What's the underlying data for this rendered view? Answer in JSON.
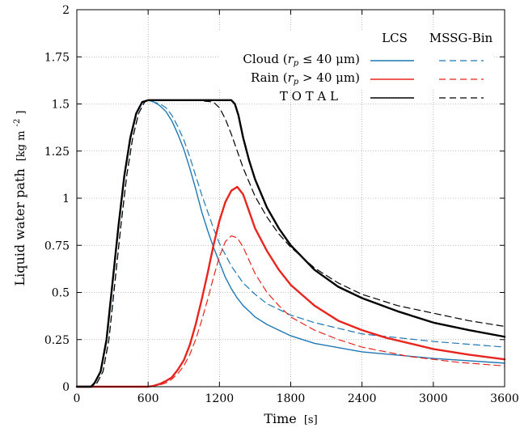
{
  "chart_data": {
    "type": "line",
    "xlabel_main": "Time",
    "xlabel_unit": "[s]",
    "ylabel_main": "Liquid water path",
    "ylabel_unit": "[kg m",
    "ylabel_exp": "-2",
    "ylabel_close": "]",
    "xlim": [
      0,
      3600
    ],
    "ylim": [
      0,
      2
    ],
    "xticks": [
      0,
      600,
      1200,
      1800,
      2400,
      3000,
      3600
    ],
    "yticks": [
      0,
      0.25,
      0.5,
      0.75,
      1,
      1.25,
      1.5,
      1.75,
      2
    ],
    "xtick_labels": [
      "0",
      "600",
      "1200",
      "1800",
      "2400",
      "3000",
      "3600"
    ],
    "ytick_labels": [
      "0",
      "0.25",
      "0.5",
      "0.75",
      "1",
      "1.25",
      "1.5",
      "1.75",
      "2"
    ],
    "grid": true,
    "legend_placement": "top-right",
    "legend": {
      "col_lcs": "LCS",
      "col_mssg": "MSSG-Bin",
      "rows": [
        {
          "pre": "Cloud (",
          "r": "r",
          "sub": "p",
          "post": " ≤ 40 μm)",
          "color": "#1f77b4"
        },
        {
          "pre": "Rain (",
          "r": "r",
          "sub": "p",
          "post": " > 40 μm)",
          "color": "#e8251e"
        },
        {
          "pre": "T O T A L",
          "r": "",
          "sub": "",
          "post": "",
          "color": "#000000"
        }
      ]
    },
    "colors": {
      "cloud": "#1f77b4",
      "rain": "#e8251e",
      "total": "#000000"
    },
    "series": [
      {
        "key": "cloud_lcs",
        "style": "solid",
        "color": "#1f77b4",
        "width": 1.4,
        "x": [
          0,
          120,
          150,
          200,
          250,
          300,
          350,
          400,
          450,
          500,
          550,
          600,
          650,
          700,
          750,
          800,
          850,
          900,
          950,
          1000,
          1050,
          1100,
          1150,
          1200,
          1250,
          1300,
          1350,
          1400,
          1500,
          1600,
          1800,
          2000,
          2400,
          3000,
          3600
        ],
        "y": [
          0,
          0,
          0.02,
          0.08,
          0.25,
          0.55,
          0.85,
          1.12,
          1.32,
          1.45,
          1.51,
          1.52,
          1.51,
          1.49,
          1.46,
          1.41,
          1.34,
          1.26,
          1.16,
          1.05,
          0.93,
          0.83,
          0.74,
          0.66,
          0.58,
          0.52,
          0.47,
          0.43,
          0.37,
          0.33,
          0.27,
          0.23,
          0.185,
          0.15,
          0.125
        ]
      },
      {
        "key": "cloud_mssg",
        "style": "dashed",
        "color": "#1f77b4",
        "width": 1.2,
        "x": [
          0,
          120,
          170,
          220,
          270,
          320,
          370,
          420,
          470,
          520,
          570,
          600,
          650,
          700,
          750,
          800,
          850,
          900,
          950,
          1000,
          1050,
          1100,
          1150,
          1200,
          1250,
          1300,
          1400,
          1500,
          1600,
          1700,
          1800,
          2000,
          2400,
          3000,
          3600
        ],
        "y": [
          0,
          0,
          0.02,
          0.08,
          0.25,
          0.55,
          0.85,
          1.12,
          1.32,
          1.45,
          1.51,
          1.52,
          1.51,
          1.5,
          1.48,
          1.44,
          1.38,
          1.31,
          1.22,
          1.12,
          1.02,
          0.93,
          0.84,
          0.76,
          0.7,
          0.64,
          0.55,
          0.49,
          0.44,
          0.41,
          0.38,
          0.34,
          0.28,
          0.24,
          0.21
        ]
      },
      {
        "key": "rain_lcs",
        "style": "solid",
        "color": "#e8251e",
        "width": 2.4,
        "x": [
          0,
          600,
          650,
          700,
          750,
          800,
          850,
          900,
          950,
          1000,
          1050,
          1100,
          1150,
          1200,
          1250,
          1300,
          1350,
          1400,
          1450,
          1500,
          1600,
          1700,
          1800,
          2000,
          2200,
          2400,
          2600,
          3000,
          3300,
          3600
        ],
        "y": [
          0,
          0,
          0.005,
          0.015,
          0.03,
          0.05,
          0.09,
          0.14,
          0.22,
          0.33,
          0.46,
          0.6,
          0.75,
          0.88,
          0.98,
          1.04,
          1.06,
          1.02,
          0.93,
          0.84,
          0.72,
          0.62,
          0.54,
          0.43,
          0.35,
          0.3,
          0.26,
          0.2,
          0.17,
          0.145
        ]
      },
      {
        "key": "rain_mssg",
        "style": "dashed",
        "color": "#e8251e",
        "width": 1.2,
        "x": [
          0,
          600,
          700,
          750,
          800,
          850,
          900,
          950,
          1000,
          1050,
          1100,
          1150,
          1200,
          1250,
          1300,
          1350,
          1400,
          1450,
          1500,
          1600,
          1700,
          1800,
          2000,
          2200,
          2400,
          2800,
          3200,
          3600
        ],
        "y": [
          0,
          0,
          0.01,
          0.02,
          0.04,
          0.07,
          0.11,
          0.17,
          0.25,
          0.35,
          0.46,
          0.58,
          0.69,
          0.77,
          0.8,
          0.79,
          0.74,
          0.67,
          0.6,
          0.5,
          0.43,
          0.37,
          0.3,
          0.25,
          0.21,
          0.16,
          0.13,
          0.11
        ]
      },
      {
        "key": "total_lcs",
        "style": "solid",
        "color": "#000000",
        "width": 2.4,
        "x": [
          0,
          120,
          150,
          200,
          250,
          300,
          350,
          400,
          450,
          500,
          550,
          600,
          800,
          1000,
          1200,
          1300,
          1330,
          1360,
          1380,
          1400,
          1450,
          1500,
          1600,
          1700,
          1800,
          2000,
          2200,
          2400,
          2700,
          3000,
          3300,
          3600
        ],
        "y": [
          0,
          0,
          0.02,
          0.08,
          0.25,
          0.55,
          0.85,
          1.12,
          1.32,
          1.45,
          1.51,
          1.52,
          1.52,
          1.52,
          1.52,
          1.52,
          1.5,
          1.44,
          1.38,
          1.32,
          1.2,
          1.1,
          0.95,
          0.84,
          0.75,
          0.62,
          0.53,
          0.47,
          0.4,
          0.34,
          0.3,
          0.265
        ]
      },
      {
        "key": "total_mssg",
        "style": "dashed",
        "color": "#000000",
        "width": 1.2,
        "x": [
          0,
          120,
          170,
          220,
          270,
          320,
          370,
          420,
          470,
          520,
          570,
          600,
          800,
          1000,
          1150,
          1200,
          1250,
          1300,
          1350,
          1400,
          1500,
          1600,
          1700,
          1800,
          2000,
          2200,
          2400,
          2700,
          3000,
          3300,
          3600
        ],
        "y": [
          0,
          0,
          0.02,
          0.08,
          0.25,
          0.55,
          0.85,
          1.12,
          1.32,
          1.45,
          1.51,
          1.52,
          1.52,
          1.52,
          1.51,
          1.48,
          1.42,
          1.34,
          1.25,
          1.16,
          1.01,
          0.9,
          0.81,
          0.74,
          0.63,
          0.55,
          0.49,
          0.43,
          0.39,
          0.35,
          0.32
        ]
      }
    ]
  }
}
